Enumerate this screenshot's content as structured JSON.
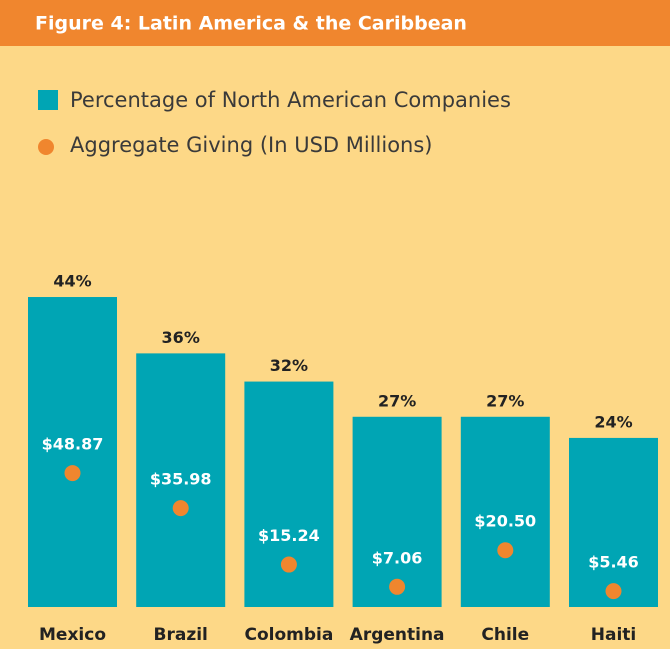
{
  "chart_data": {
    "type": "bar",
    "title": "Figure 4: Latin America & the Caribbean",
    "categories": [
      "Mexico",
      "Brazil",
      "Colombia",
      "Argentina",
      "Chile",
      "Haiti"
    ],
    "series": [
      {
        "name": "Percentage of North American Companies",
        "color": "#00a5b4",
        "values": [
          44,
          36,
          32,
          27,
          27,
          24
        ],
        "value_labels": [
          "44%",
          "36%",
          "32%",
          "27%",
          "27%",
          "24%"
        ]
      },
      {
        "name": "Aggregate Giving (In USD Millions)",
        "color": "#f0862e",
        "values": [
          48.87,
          35.98,
          15.24,
          7.06,
          20.5,
          5.46
        ],
        "value_labels": [
          "$48.87",
          "$35.98",
          "$15.24",
          "$7.06",
          "$20.50",
          "$5.46"
        ]
      }
    ]
  }
}
